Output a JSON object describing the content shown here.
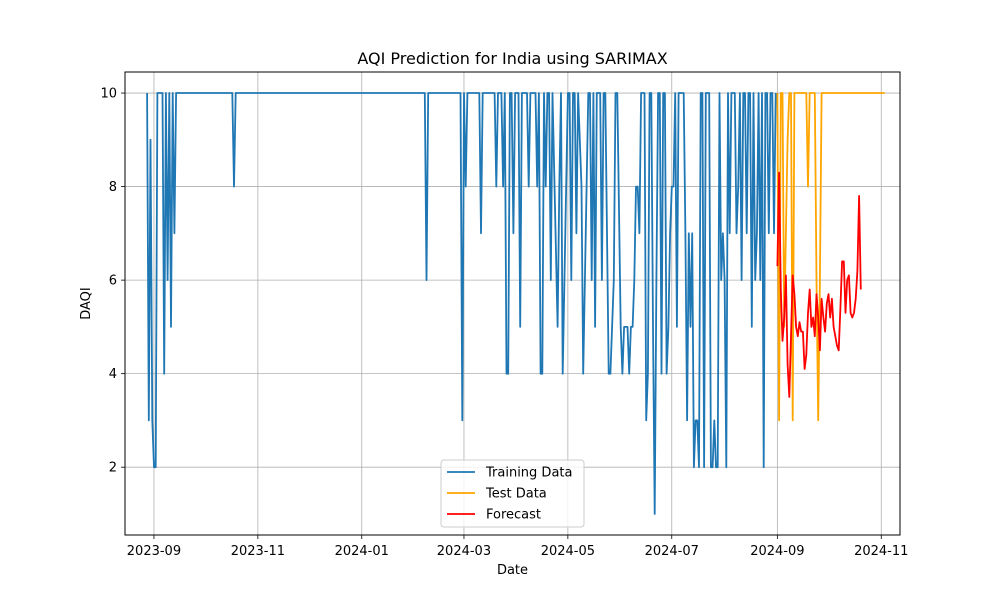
{
  "chart_data": {
    "type": "line",
    "title": "AQI Prediction for India using SARIMAX",
    "xlabel": "Date",
    "ylabel": "DAQI",
    "xlim": [
      "2023-08-15",
      "2024-11-12"
    ],
    "ylim": [
      0.55,
      10.45
    ],
    "x_ticks": [
      {
        "date": "2023-09-01",
        "label": "2023-09"
      },
      {
        "date": "2023-11-01",
        "label": "2023-11"
      },
      {
        "date": "2024-01-01",
        "label": "2024-01"
      },
      {
        "date": "2024-03-01",
        "label": "2024-03"
      },
      {
        "date": "2024-05-01",
        "label": "2024-05"
      },
      {
        "date": "2024-07-01",
        "label": "2024-07"
      },
      {
        "date": "2024-09-01",
        "label": "2024-09"
      },
      {
        "date": "2024-11-01",
        "label": "2024-11"
      }
    ],
    "y_ticks": [
      2,
      4,
      6,
      8,
      10
    ],
    "grid": true,
    "legend_position": "lower-center",
    "series": [
      {
        "name": "Training Data",
        "color": "#1f77b4",
        "points": [
          [
            "2023-08-28",
            10
          ],
          [
            "2023-08-29",
            3
          ],
          [
            "2023-08-30",
            9
          ],
          [
            "2023-08-31",
            3
          ],
          [
            "2023-09-01",
            2
          ],
          [
            "2023-09-02",
            2
          ],
          [
            "2023-09-03",
            10
          ],
          [
            "2023-09-04",
            10
          ],
          [
            "2023-09-05",
            10
          ],
          [
            "2023-09-06",
            10
          ],
          [
            "2023-09-07",
            4
          ],
          [
            "2023-09-08",
            10
          ],
          [
            "2023-09-09",
            6
          ],
          [
            "2023-09-10",
            10
          ],
          [
            "2023-09-11",
            5
          ],
          [
            "2023-09-12",
            10
          ],
          [
            "2023-09-13",
            7
          ],
          [
            "2023-09-14",
            10
          ],
          [
            "2023-09-20",
            10
          ],
          [
            "2023-10-01",
            10
          ],
          [
            "2023-10-10",
            10
          ],
          [
            "2023-10-17",
            10
          ],
          [
            "2023-10-18",
            8
          ],
          [
            "2023-10-19",
            10
          ],
          [
            "2023-11-15",
            10
          ],
          [
            "2023-12-20",
            10
          ],
          [
            "2024-01-25",
            10
          ],
          [
            "2024-02-07",
            10
          ],
          [
            "2024-02-08",
            6
          ],
          [
            "2024-02-09",
            10
          ],
          [
            "2024-02-27",
            10
          ],
          [
            "2024-02-28",
            10
          ],
          [
            "2024-02-29",
            3
          ],
          [
            "2024-03-01",
            10
          ],
          [
            "2024-03-02",
            8
          ],
          [
            "2024-03-03",
            10
          ],
          [
            "2024-03-10",
            10
          ],
          [
            "2024-03-11",
            7
          ],
          [
            "2024-03-12",
            10
          ],
          [
            "2024-03-19",
            10
          ],
          [
            "2024-03-20",
            8
          ],
          [
            "2024-03-21",
            10
          ],
          [
            "2024-03-23",
            10
          ],
          [
            "2024-03-24",
            8
          ],
          [
            "2024-03-25",
            10
          ],
          [
            "2024-03-26",
            4
          ],
          [
            "2024-03-27",
            4
          ],
          [
            "2024-03-28",
            10
          ],
          [
            "2024-03-29",
            10
          ],
          [
            "2024-03-30",
            7
          ],
          [
            "2024-03-31",
            10
          ],
          [
            "2024-04-02",
            10
          ],
          [
            "2024-04-03",
            5
          ],
          [
            "2024-04-04",
            10
          ],
          [
            "2024-04-06",
            10
          ],
          [
            "2024-04-07",
            10
          ],
          [
            "2024-04-08",
            8
          ],
          [
            "2024-04-09",
            10
          ],
          [
            "2024-04-11",
            10
          ],
          [
            "2024-04-12",
            10
          ],
          [
            "2024-04-13",
            8
          ],
          [
            "2024-04-14",
            10
          ],
          [
            "2024-04-15",
            4
          ],
          [
            "2024-04-16",
            4
          ],
          [
            "2024-04-17",
            10
          ],
          [
            "2024-04-18",
            8
          ],
          [
            "2024-04-19",
            10
          ],
          [
            "2024-04-20",
            10
          ],
          [
            "2024-04-21",
            6
          ],
          [
            "2024-04-22",
            10
          ],
          [
            "2024-04-25",
            5
          ],
          [
            "2024-04-26",
            8
          ],
          [
            "2024-04-27",
            10
          ],
          [
            "2024-04-28",
            4
          ],
          [
            "2024-05-01",
            10
          ],
          [
            "2024-05-02",
            10
          ],
          [
            "2024-05-03",
            6
          ],
          [
            "2024-05-04",
            10
          ],
          [
            "2024-05-05",
            10
          ],
          [
            "2024-05-06",
            7
          ],
          [
            "2024-05-07",
            10
          ],
          [
            "2024-05-09",
            8
          ],
          [
            "2024-05-10",
            4
          ],
          [
            "2024-05-13",
            10
          ],
          [
            "2024-05-14",
            10
          ],
          [
            "2024-05-15",
            6
          ],
          [
            "2024-05-16",
            10
          ],
          [
            "2024-05-17",
            5
          ],
          [
            "2024-05-18",
            10
          ],
          [
            "2024-05-20",
            10
          ],
          [
            "2024-05-21",
            6
          ],
          [
            "2024-05-22",
            10
          ],
          [
            "2024-05-23",
            10
          ],
          [
            "2024-05-25",
            4
          ],
          [
            "2024-05-26",
            4
          ],
          [
            "2024-05-27",
            5
          ],
          [
            "2024-05-28",
            6
          ],
          [
            "2024-05-29",
            10
          ],
          [
            "2024-05-30",
            10
          ],
          [
            "2024-06-01",
            5
          ],
          [
            "2024-06-02",
            4
          ],
          [
            "2024-06-03",
            5
          ],
          [
            "2024-06-05",
            5
          ],
          [
            "2024-06-06",
            4
          ],
          [
            "2024-06-07",
            5
          ],
          [
            "2024-06-08",
            5
          ],
          [
            "2024-06-09",
            6
          ],
          [
            "2024-06-10",
            8
          ],
          [
            "2024-06-11",
            8
          ],
          [
            "2024-06-12",
            7
          ],
          [
            "2024-06-13",
            10
          ],
          [
            "2024-06-15",
            10
          ],
          [
            "2024-06-16",
            3
          ],
          [
            "2024-06-17",
            4
          ],
          [
            "2024-06-18",
            10
          ],
          [
            "2024-06-19",
            10
          ],
          [
            "2024-06-20",
            5
          ],
          [
            "2024-06-21",
            1
          ],
          [
            "2024-06-22",
            6
          ],
          [
            "2024-06-23",
            10
          ],
          [
            "2024-06-24",
            10
          ],
          [
            "2024-06-25",
            4
          ],
          [
            "2024-06-26",
            10
          ],
          [
            "2024-06-27",
            10
          ],
          [
            "2024-06-28",
            4
          ],
          [
            "2024-06-29",
            5
          ],
          [
            "2024-06-30",
            7
          ],
          [
            "2024-07-01",
            8
          ],
          [
            "2024-07-02",
            8
          ],
          [
            "2024-07-03",
            10
          ],
          [
            "2024-07-04",
            5
          ],
          [
            "2024-07-05",
            10
          ],
          [
            "2024-07-06",
            10
          ],
          [
            "2024-07-07",
            10
          ],
          [
            "2024-07-08",
            10
          ],
          [
            "2024-07-09",
            7
          ],
          [
            "2024-07-10",
            3
          ],
          [
            "2024-07-11",
            7
          ],
          [
            "2024-07-12",
            5
          ],
          [
            "2024-07-13",
            7
          ],
          [
            "2024-07-14",
            2
          ],
          [
            "2024-07-15",
            3
          ],
          [
            "2024-07-16",
            3
          ],
          [
            "2024-07-17",
            2
          ],
          [
            "2024-07-18",
            10
          ],
          [
            "2024-07-19",
            10
          ],
          [
            "2024-07-20",
            2
          ],
          [
            "2024-07-21",
            10
          ],
          [
            "2024-07-22",
            10
          ],
          [
            "2024-07-23",
            10
          ],
          [
            "2024-07-24",
            2
          ],
          [
            "2024-07-25",
            2
          ],
          [
            "2024-07-26",
            3
          ],
          [
            "2024-07-27",
            2
          ],
          [
            "2024-07-28",
            2
          ],
          [
            "2024-07-29",
            10
          ],
          [
            "2024-07-30",
            6
          ],
          [
            "2024-07-31",
            7
          ],
          [
            "2024-08-01",
            6
          ],
          [
            "2024-08-02",
            2
          ],
          [
            "2024-08-03",
            10
          ],
          [
            "2024-08-04",
            7
          ],
          [
            "2024-08-05",
            10
          ],
          [
            "2024-08-06",
            10
          ],
          [
            "2024-08-07",
            10
          ],
          [
            "2024-08-08",
            7
          ],
          [
            "2024-08-09",
            8
          ],
          [
            "2024-08-10",
            10
          ],
          [
            "2024-08-11",
            6
          ],
          [
            "2024-08-12",
            10
          ],
          [
            "2024-08-13",
            10
          ],
          [
            "2024-08-14",
            7
          ],
          [
            "2024-08-15",
            10
          ],
          [
            "2024-08-16",
            10
          ],
          [
            "2024-08-17",
            5
          ],
          [
            "2024-08-18",
            10
          ],
          [
            "2024-08-19",
            6
          ],
          [
            "2024-08-20",
            7
          ],
          [
            "2024-08-21",
            10
          ],
          [
            "2024-08-22",
            6
          ],
          [
            "2024-08-23",
            10
          ],
          [
            "2024-08-24",
            2
          ],
          [
            "2024-08-25",
            10
          ],
          [
            "2024-08-26",
            10
          ],
          [
            "2024-08-27",
            7
          ],
          [
            "2024-08-28",
            10
          ],
          [
            "2024-08-29",
            10
          ],
          [
            "2024-08-30",
            7
          ],
          [
            "2024-08-31",
            10
          ]
        ]
      },
      {
        "name": "Test Data",
        "color": "#ffa500",
        "points": [
          [
            "2024-09-01",
            10
          ],
          [
            "2024-09-02",
            3
          ],
          [
            "2024-09-03",
            10
          ],
          [
            "2024-09-04",
            10
          ],
          [
            "2024-09-05",
            5
          ],
          [
            "2024-09-06",
            7
          ],
          [
            "2024-09-07",
            9
          ],
          [
            "2024-09-08",
            10
          ],
          [
            "2024-09-09",
            10
          ],
          [
            "2024-09-10",
            3
          ],
          [
            "2024-09-11",
            10
          ],
          [
            "2024-09-12",
            10
          ],
          [
            "2024-09-18",
            10
          ],
          [
            "2024-09-19",
            8
          ],
          [
            "2024-09-20",
            10
          ],
          [
            "2024-09-23",
            10
          ],
          [
            "2024-09-24",
            6
          ],
          [
            "2024-09-25",
            3
          ],
          [
            "2024-09-26",
            6
          ],
          [
            "2024-09-27",
            10
          ],
          [
            "2024-10-10",
            10
          ],
          [
            "2024-10-25",
            10
          ],
          [
            "2024-11-03",
            10
          ]
        ]
      },
      {
        "name": "Forecast",
        "color": "#ff0000",
        "points": [
          [
            "2024-09-01",
            6.3
          ],
          [
            "2024-09-02",
            8.3
          ],
          [
            "2024-09-03",
            5.8
          ],
          [
            "2024-09-04",
            4.7
          ],
          [
            "2024-09-05",
            5.2
          ],
          [
            "2024-09-06",
            6.1
          ],
          [
            "2024-09-07",
            4.2
          ],
          [
            "2024-09-08",
            3.5
          ],
          [
            "2024-09-09",
            4.8
          ],
          [
            "2024-09-10",
            6.1
          ],
          [
            "2024-09-11",
            5.7
          ],
          [
            "2024-09-12",
            5.0
          ],
          [
            "2024-09-13",
            4.8
          ],
          [
            "2024-09-14",
            5.1
          ],
          [
            "2024-09-15",
            4.9
          ],
          [
            "2024-09-16",
            4.9
          ],
          [
            "2024-09-17",
            4.1
          ],
          [
            "2024-09-18",
            4.4
          ],
          [
            "2024-09-19",
            5.3
          ],
          [
            "2024-09-20",
            5.8
          ],
          [
            "2024-09-21",
            5.0
          ],
          [
            "2024-09-22",
            5.2
          ],
          [
            "2024-09-23",
            4.8
          ],
          [
            "2024-09-24",
            5.7
          ],
          [
            "2024-09-25",
            5.2
          ],
          [
            "2024-09-26",
            4.5
          ],
          [
            "2024-09-27",
            5.6
          ],
          [
            "2024-09-28",
            5.2
          ],
          [
            "2024-09-29",
            4.9
          ],
          [
            "2024-09-30",
            5.5
          ],
          [
            "2024-10-01",
            5.7
          ],
          [
            "2024-10-02",
            5.2
          ],
          [
            "2024-10-03",
            5.6
          ],
          [
            "2024-10-04",
            5.0
          ],
          [
            "2024-10-05",
            4.8
          ],
          [
            "2024-10-06",
            4.6
          ],
          [
            "2024-10-07",
            4.5
          ],
          [
            "2024-10-08",
            5.4
          ],
          [
            "2024-10-09",
            6.4
          ],
          [
            "2024-10-10",
            6.4
          ],
          [
            "2024-10-11",
            5.3
          ],
          [
            "2024-10-12",
            6.0
          ],
          [
            "2024-10-13",
            6.1
          ],
          [
            "2024-10-14",
            5.3
          ],
          [
            "2024-10-15",
            5.2
          ],
          [
            "2024-10-16",
            5.3
          ],
          [
            "2024-10-17",
            5.6
          ],
          [
            "2024-10-18",
            6.2
          ],
          [
            "2024-10-19",
            7.8
          ],
          [
            "2024-10-20",
            5.8
          ]
        ]
      }
    ]
  }
}
